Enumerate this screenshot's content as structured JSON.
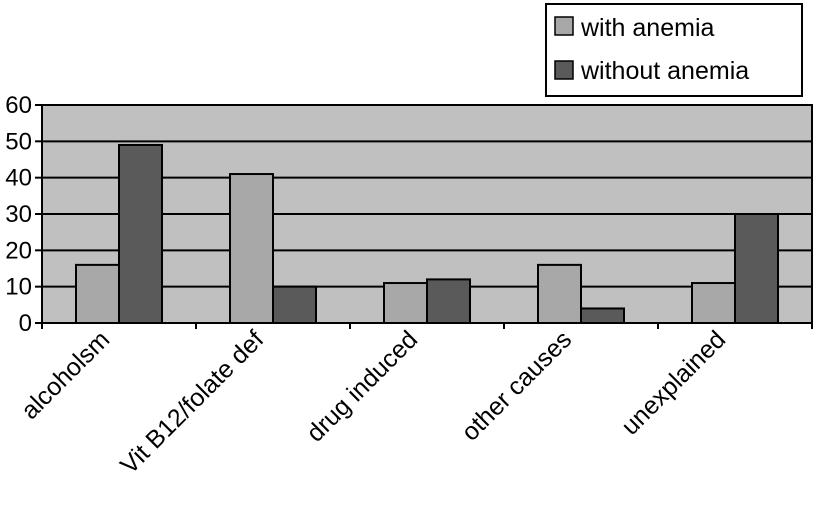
{
  "chart_data": {
    "type": "bar",
    "categories": [
      "alcoholsm",
      "Vit B12/folate def",
      "drug induced",
      "other causes",
      "unexplained"
    ],
    "series": [
      {
        "name": "with anemia",
        "values": [
          16,
          41,
          11,
          16,
          11
        ],
        "color": "#a8a8a8"
      },
      {
        "name": "without anemia",
        "values": [
          49,
          10,
          12,
          4,
          30
        ],
        "color": "#5a5a5a"
      }
    ],
    "ylim": [
      0,
      60
    ],
    "yticks": [
      "0",
      "10",
      "20",
      "30",
      "40",
      "50",
      "60"
    ],
    "grid": true,
    "plot_background": "#c0c0c0",
    "legend_position": "top-right",
    "xlabel": "",
    "ylabel": "",
    "title": ""
  }
}
